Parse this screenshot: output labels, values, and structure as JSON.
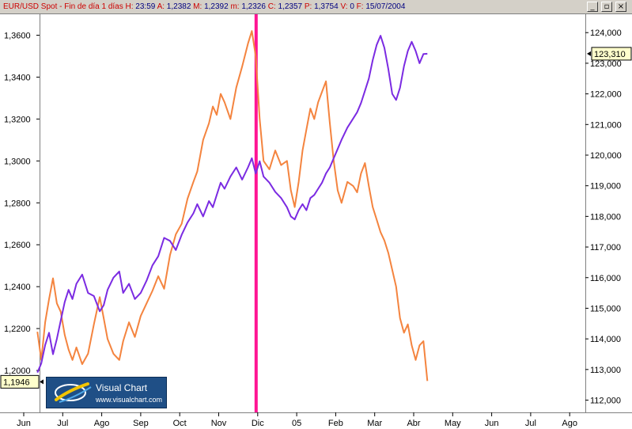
{
  "window": {
    "header_fields": [
      {
        "key": "EUR/USD Spot - Fin de día 1 días",
        "value": ""
      },
      {
        "key": "H:",
        "value": "23:59"
      },
      {
        "key": "A:",
        "value": "1,2382"
      },
      {
        "key": "M:",
        "value": "1,2392"
      },
      {
        "key": "m:",
        "value": "1,2326"
      },
      {
        "key": "C:",
        "value": "1,2357"
      },
      {
        "key": "P:",
        "value": "1,3754"
      },
      {
        "key": "V:",
        "value": "0"
      },
      {
        "key": "F:",
        "value": "15/07/2004"
      }
    ],
    "buttons": [
      {
        "name": "minimize",
        "glyph": "_"
      },
      {
        "name": "restore",
        "glyph": "▫"
      },
      {
        "name": "close",
        "glyph": "×"
      }
    ]
  },
  "logo": {
    "title": "Visual Chart",
    "url": "www.visualchart.com"
  },
  "chart_data": {
    "type": "line",
    "x": [
      "Jun",
      "Jul",
      "Ago",
      "Sep",
      "Oct",
      "Nov",
      "Dic",
      "05",
      "Feb",
      "Mar",
      "Abr",
      "May",
      "Jun",
      "Jul",
      "Ago"
    ],
    "left_axis": {
      "ylim": [
        1.18,
        1.37
      ],
      "ticks": [
        "1,2000",
        "1,2200",
        "1,2400",
        "1,2600",
        "1,2800",
        "1,3000",
        "1,3200",
        "1,3400",
        "1,3600"
      ],
      "current_label": "1,1946",
      "current_value": 1.1946
    },
    "right_axis": {
      "ylim": [
        111.6,
        124.6
      ],
      "ticks": [
        "112,000",
        "113,000",
        "114,000",
        "115,000",
        "116,000",
        "117,000",
        "118,000",
        "119,000",
        "120,000",
        "121,000",
        "122,000",
        "123,000",
        "124,000"
      ],
      "current_label": "123,310",
      "current_value": 123.31
    },
    "marker": {
      "label": "Dic",
      "color": "#ff1493"
    },
    "series": [
      {
        "axis": "left",
        "color": "#f4843f",
        "points": [
          [
            0.35,
            1.2185
          ],
          [
            0.45,
            1.205
          ],
          [
            0.55,
            1.223
          ],
          [
            0.65,
            1.234
          ],
          [
            0.75,
            1.244
          ],
          [
            0.85,
            1.232
          ],
          [
            0.95,
            1.228
          ],
          [
            1.05,
            1.217
          ],
          [
            1.15,
            1.21
          ],
          [
            1.25,
            1.205
          ],
          [
            1.35,
            1.211
          ],
          [
            1.5,
            1.203
          ],
          [
            1.65,
            1.208
          ],
          [
            1.8,
            1.222
          ],
          [
            1.95,
            1.235
          ],
          [
            2.05,
            1.225
          ],
          [
            2.15,
            1.215
          ],
          [
            2.3,
            1.208
          ],
          [
            2.45,
            1.205
          ],
          [
            2.55,
            1.214
          ],
          [
            2.7,
            1.223
          ],
          [
            2.85,
            1.216
          ],
          [
            3.0,
            1.226
          ],
          [
            3.15,
            1.232
          ],
          [
            3.3,
            1.238
          ],
          [
            3.45,
            1.245
          ],
          [
            3.6,
            1.239
          ],
          [
            3.75,
            1.255
          ],
          [
            3.9,
            1.265
          ],
          [
            4.05,
            1.27
          ],
          [
            4.2,
            1.282
          ],
          [
            4.35,
            1.29
          ],
          [
            4.45,
            1.295
          ],
          [
            4.6,
            1.31
          ],
          [
            4.75,
            1.318
          ],
          [
            4.85,
            1.326
          ],
          [
            4.95,
            1.322
          ],
          [
            5.05,
            1.332
          ],
          [
            5.15,
            1.328
          ],
          [
            5.3,
            1.32
          ],
          [
            5.45,
            1.335
          ],
          [
            5.6,
            1.345
          ],
          [
            5.75,
            1.356
          ],
          [
            5.85,
            1.362
          ],
          [
            5.95,
            1.35
          ],
          [
            6.05,
            1.32
          ],
          [
            6.15,
            1.3
          ],
          [
            6.3,
            1.296
          ],
          [
            6.45,
            1.305
          ],
          [
            6.6,
            1.298
          ],
          [
            6.75,
            1.3
          ],
          [
            6.85,
            1.286
          ],
          [
            6.95,
            1.278
          ],
          [
            7.05,
            1.29
          ],
          [
            7.15,
            1.305
          ],
          [
            7.25,
            1.315
          ],
          [
            7.35,
            1.325
          ],
          [
            7.45,
            1.32
          ],
          [
            7.55,
            1.328
          ],
          [
            7.65,
            1.333
          ],
          [
            7.75,
            1.338
          ],
          [
            7.85,
            1.318
          ],
          [
            7.95,
            1.3
          ],
          [
            8.05,
            1.286
          ],
          [
            8.15,
            1.28
          ],
          [
            8.3,
            1.29
          ],
          [
            8.45,
            1.288
          ],
          [
            8.55,
            1.285
          ],
          [
            8.65,
            1.294
          ],
          [
            8.75,
            1.299
          ],
          [
            8.85,
            1.288
          ],
          [
            8.95,
            1.278
          ],
          [
            9.05,
            1.272
          ],
          [
            9.15,
            1.266
          ],
          [
            9.25,
            1.262
          ],
          [
            9.35,
            1.256
          ],
          [
            9.45,
            1.248
          ],
          [
            9.55,
            1.24
          ],
          [
            9.65,
            1.225
          ],
          [
            9.75,
            1.218
          ],
          [
            9.85,
            1.222
          ],
          [
            9.95,
            1.212
          ],
          [
            10.05,
            1.205
          ],
          [
            10.15,
            1.212
          ],
          [
            10.25,
            1.214
          ],
          [
            10.35,
            1.195
          ]
        ]
      },
      {
        "axis": "right",
        "color": "#7b2be2",
        "points": [
          [
            0.35,
            112.9
          ],
          [
            0.45,
            113.2
          ],
          [
            0.55,
            113.8
          ],
          [
            0.65,
            114.2
          ],
          [
            0.75,
            113.5
          ],
          [
            0.85,
            114.0
          ],
          [
            0.95,
            114.6
          ],
          [
            1.05,
            115.2
          ],
          [
            1.15,
            115.6
          ],
          [
            1.25,
            115.3
          ],
          [
            1.35,
            115.8
          ],
          [
            1.5,
            116.1
          ],
          [
            1.65,
            115.5
          ],
          [
            1.8,
            115.4
          ],
          [
            1.95,
            114.9
          ],
          [
            2.05,
            115.1
          ],
          [
            2.15,
            115.6
          ],
          [
            2.3,
            116.0
          ],
          [
            2.45,
            116.2
          ],
          [
            2.55,
            115.5
          ],
          [
            2.7,
            115.8
          ],
          [
            2.85,
            115.3
          ],
          [
            3.0,
            115.5
          ],
          [
            3.15,
            115.9
          ],
          [
            3.3,
            116.4
          ],
          [
            3.45,
            116.7
          ],
          [
            3.6,
            117.3
          ],
          [
            3.75,
            117.2
          ],
          [
            3.9,
            116.9
          ],
          [
            4.05,
            117.4
          ],
          [
            4.2,
            117.8
          ],
          [
            4.35,
            118.1
          ],
          [
            4.45,
            118.4
          ],
          [
            4.6,
            118.0
          ],
          [
            4.75,
            118.5
          ],
          [
            4.85,
            118.3
          ],
          [
            4.95,
            118.7
          ],
          [
            5.05,
            119.1
          ],
          [
            5.15,
            118.9
          ],
          [
            5.3,
            119.3
          ],
          [
            5.45,
            119.6
          ],
          [
            5.6,
            119.2
          ],
          [
            5.75,
            119.6
          ],
          [
            5.85,
            119.9
          ],
          [
            5.95,
            119.4
          ],
          [
            6.05,
            119.8
          ],
          [
            6.15,
            119.3
          ],
          [
            6.3,
            119.1
          ],
          [
            6.45,
            118.8
          ],
          [
            6.6,
            118.6
          ],
          [
            6.75,
            118.3
          ],
          [
            6.85,
            118.0
          ],
          [
            6.95,
            117.9
          ],
          [
            7.05,
            118.2
          ],
          [
            7.15,
            118.4
          ],
          [
            7.25,
            118.2
          ],
          [
            7.35,
            118.6
          ],
          [
            7.45,
            118.7
          ],
          [
            7.55,
            118.9
          ],
          [
            7.65,
            119.1
          ],
          [
            7.75,
            119.4
          ],
          [
            7.85,
            119.6
          ],
          [
            7.95,
            119.9
          ],
          [
            8.05,
            120.2
          ],
          [
            8.15,
            120.5
          ],
          [
            8.3,
            120.9
          ],
          [
            8.45,
            121.2
          ],
          [
            8.55,
            121.4
          ],
          [
            8.65,
            121.7
          ],
          [
            8.75,
            122.1
          ],
          [
            8.85,
            122.5
          ],
          [
            8.95,
            123.1
          ],
          [
            9.05,
            123.6
          ],
          [
            9.15,
            123.9
          ],
          [
            9.25,
            123.5
          ],
          [
            9.35,
            122.8
          ],
          [
            9.45,
            122.0
          ],
          [
            9.55,
            121.8
          ],
          [
            9.65,
            122.2
          ],
          [
            9.75,
            122.9
          ],
          [
            9.85,
            123.4
          ],
          [
            9.95,
            123.7
          ],
          [
            10.05,
            123.4
          ],
          [
            10.15,
            123.0
          ],
          [
            10.25,
            123.3
          ],
          [
            10.35,
            123.31
          ]
        ]
      }
    ]
  }
}
